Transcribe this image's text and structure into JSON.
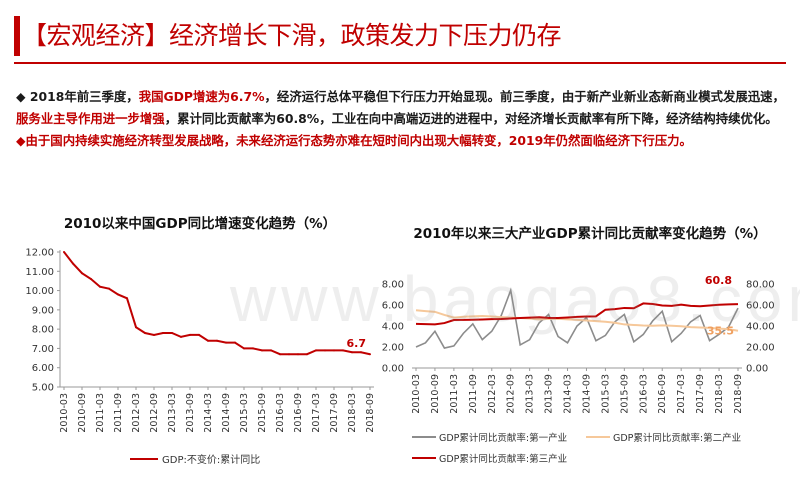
{
  "header": {
    "title": "【宏观经济】经济增长下滑，政策发力下压力仍存"
  },
  "bullets": {
    "p1": [
      {
        "text": "◆  2018年前三季度，",
        "red": false
      },
      {
        "text": "我国GDP增速为6.7%",
        "red": true
      },
      {
        "text": "，经济运行总体平稳但下行压力开始显现。前三季度，由于新产业新业态新商业模式发展迅速，",
        "red": false
      },
      {
        "text": "服务业主导作用进一步增强",
        "red": true
      },
      {
        "text": "，累计同比贡献率为60.8%，工业在向中高端迈进的进程中，对经济增长贡献率有所下降，经济结构持续优化。",
        "red": false
      }
    ],
    "p2": "◆由于国内持续实施经济转型发展战略，未来经济运行态势亦难在短时间内出现大幅转变，2019年仍然面临经济下行压力。"
  },
  "watermark": "www.baogao8.com",
  "colors": {
    "accent": "#c00000",
    "primary_industry": "#8c8c8c",
    "secondary_industry": "#f6c89a",
    "tertiary_industry": "#c00000"
  },
  "chart_data": [
    {
      "type": "line",
      "title": "2010以来中国GDP同比增速变化趋势（%）",
      "ylim": [
        5.0,
        12.0
      ],
      "yticks": [
        "12.00",
        "11.00",
        "10.00",
        "9.00",
        "8.00",
        "7.00",
        "6.00",
        "5.00"
      ],
      "xticks": [
        "2010-03",
        "2010-09",
        "2011-03",
        "2011-09",
        "2012-03",
        "2012-09",
        "2013-03",
        "2013-09",
        "2014-03",
        "2014-09",
        "2015-03",
        "2015-09",
        "2016-03",
        "2016-09",
        "2017-03",
        "2017-09",
        "2018-03",
        "2018-09"
      ],
      "series": [
        {
          "name": "GDP:不变价:累计同比",
          "color": "#c00000",
          "values": [
            12.0,
            11.4,
            10.9,
            10.6,
            10.2,
            10.1,
            9.8,
            9.6,
            8.1,
            7.8,
            7.7,
            7.8,
            7.8,
            7.6,
            7.7,
            7.7,
            7.4,
            7.4,
            7.3,
            7.3,
            7.0,
            7.0,
            6.9,
            6.9,
            6.7,
            6.7,
            6.7,
            6.7,
            6.9,
            6.9,
            6.9,
            6.9,
            6.8,
            6.8,
            6.7
          ]
        }
      ],
      "annotation": "6.7"
    },
    {
      "type": "line",
      "title": "2010年以来三大产业GDP累计同比贡献率变化趋势（%）",
      "y_left_ticks": [
        "8.00",
        "6.00",
        "4.00",
        "2.00",
        "0.00"
      ],
      "y_left_range": [
        0,
        8
      ],
      "y_right_ticks": [
        "80.00",
        "60.00",
        "40.00",
        "20.00",
        "0.00"
      ],
      "y_right_range": [
        0,
        80
      ],
      "xticks": [
        "2010-03",
        "2010-09",
        "2011-03",
        "2011-09",
        "2012-03",
        "2012-09",
        "2013-03",
        "2013-09",
        "2014-03",
        "2014-09",
        "2015-03",
        "2015-09",
        "2016-03",
        "2016-09",
        "2017-03",
        "2017-09",
        "2018-03",
        "2018-09"
      ],
      "series": [
        {
          "name": "GDP累计同比贡献率:第一产业",
          "color": "#8c8c8c",
          "axis": "left",
          "values": [
            2.0,
            2.4,
            3.5,
            1.9,
            2.1,
            3.3,
            4.2,
            2.7,
            3.5,
            5.0,
            7.4,
            2.2,
            2.7,
            4.3,
            5.1,
            3.0,
            2.4,
            4.0,
            4.8,
            2.6,
            3.1,
            4.4,
            5.1,
            2.5,
            3.2,
            4.5,
            5.4,
            2.5,
            3.3,
            4.4,
            5.0,
            2.6,
            3.2,
            3.9,
            5.7
          ]
        },
        {
          "name": "GDP累计同比贡献率:第二产业",
          "color": "#f6c89a",
          "axis": "right",
          "values": [
            55.0,
            54.2,
            53.5,
            50.5,
            48.0,
            48.8,
            49.2,
            49.5,
            49.0,
            48.5,
            48.0,
            47.6,
            47.1,
            46.3,
            46.8,
            46.9,
            46.3,
            45.8,
            45.2,
            44.6,
            44.0,
            43.1,
            41.5,
            41.0,
            40.5,
            40.2,
            40.6,
            40.2,
            39.8,
            38.9,
            38.6,
            38.2,
            37.5,
            37.0,
            35.5
          ]
        },
        {
          "name": "GDP累计同比贡献率:第三产业",
          "color": "#c00000",
          "axis": "right",
          "values": [
            42.0,
            41.8,
            41.5,
            42.8,
            45.7,
            45.8,
            46.0,
            46.2,
            46.5,
            46.7,
            47.1,
            47.6,
            48.0,
            48.3,
            47.7,
            47.6,
            48.1,
            48.7,
            49.0,
            49.2,
            55.5,
            56.1,
            57.2,
            56.9,
            61.5,
            60.9,
            59.5,
            59.2,
            60.3,
            59.2,
            58.8,
            59.5,
            60.2,
            60.6,
            60.8
          ]
        }
      ],
      "annotations": {
        "tertiary_last": "60.8",
        "secondary_last": "35.5"
      }
    }
  ]
}
